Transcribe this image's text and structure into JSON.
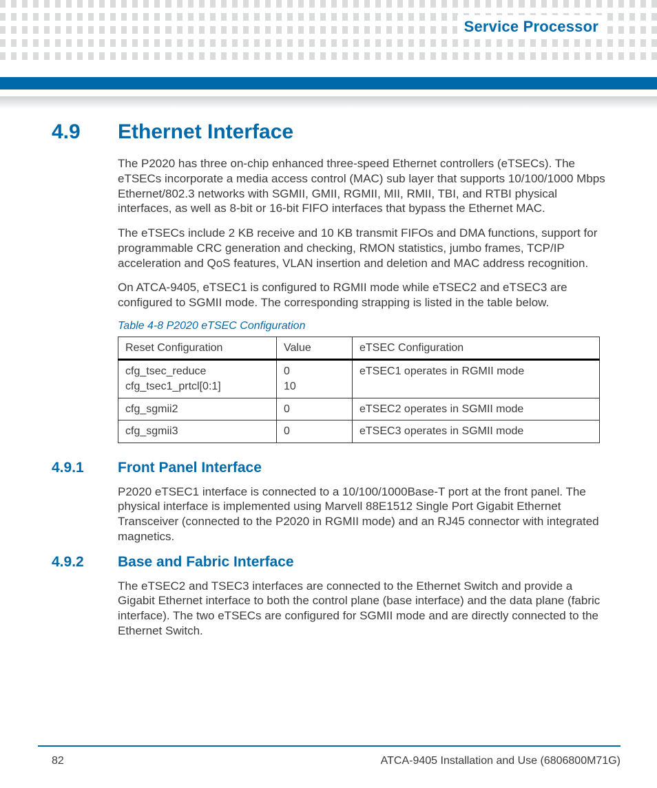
{
  "header": {
    "section_label": "Service Processor"
  },
  "colors": {
    "brand": "#0069aa",
    "dot": "#d9dbdc",
    "text": "#3a3a3a",
    "table_border": "#333333"
  },
  "section": {
    "number": "4.9",
    "title": "Ethernet Interface",
    "paragraphs": [
      "The P2020 has three on-chip enhanced three-speed Ethernet controllers (eTSECs). The eTSECs incorporate a media access control (MAC) sub layer that supports 10/100/1000 Mbps Ethernet/802.3 networks with SGMII, GMII, RGMII, MII, RMII, TBI, and RTBI physical interfaces, as well as 8-bit or 16-bit FIFO interfaces that bypass the Ethernet MAC.",
      "The eTSECs include 2 KB receive and 10 KB transmit FIFOs and DMA functions, support for programmable CRC generation and checking, RMON statistics, jumbo frames, TCP/IP acceleration and QoS features, VLAN insertion and deletion and MAC address recognition.",
      "On ATCA-9405, eTSEC1 is configured to RGMII mode while eTSEC2 and eTSEC3 are configured to SGMII mode. The corresponding strapping is listed in the table below."
    ]
  },
  "table": {
    "caption": "Table 4-8 P2020 eTSEC Configuration",
    "columns": [
      "Reset Configuration",
      "Value",
      "eTSEC Configuration"
    ],
    "rows": [
      {
        "c0": [
          "cfg_tsec_reduce",
          "cfg_tsec1_prtcl[0:1]"
        ],
        "c1": [
          "0",
          "10"
        ],
        "c2": [
          "eTSEC1 operates in RGMII mode"
        ]
      },
      {
        "c0": [
          "cfg_sgmii2"
        ],
        "c1": [
          "0"
        ],
        "c2": [
          "eTSEC2 operates in SGMII mode"
        ]
      },
      {
        "c0": [
          "cfg_sgmii3"
        ],
        "c1": [
          "0"
        ],
        "c2": [
          "eTSEC3 operates in SGMII mode"
        ]
      }
    ]
  },
  "subsections": [
    {
      "number": "4.9.1",
      "title": "Front Panel Interface",
      "paragraph": "P2020 eTSEC1 interface is connected to a 10/100/1000Base-T port at the front panel. The physical interface is implemented using Marvell 88E1512 Single Port Gigabit Ethernet Transceiver (connected to the P2020 in RGMII mode) and an RJ45 connector with integrated magnetics."
    },
    {
      "number": "4.9.2",
      "title": "Base and Fabric Interface",
      "paragraph": "The eTSEC2 and TSEC3 interfaces are connected to the Ethernet Switch and provide a Gigabit Ethernet interface to both the control plane (base interface) and the data plane (fabric interface). The two eTSECs are configured for SGMII mode and are directly connected to the Ethernet Switch."
    }
  ],
  "footer": {
    "page": "82",
    "doc": "ATCA-9405 Installation and Use (6806800M71G)"
  }
}
